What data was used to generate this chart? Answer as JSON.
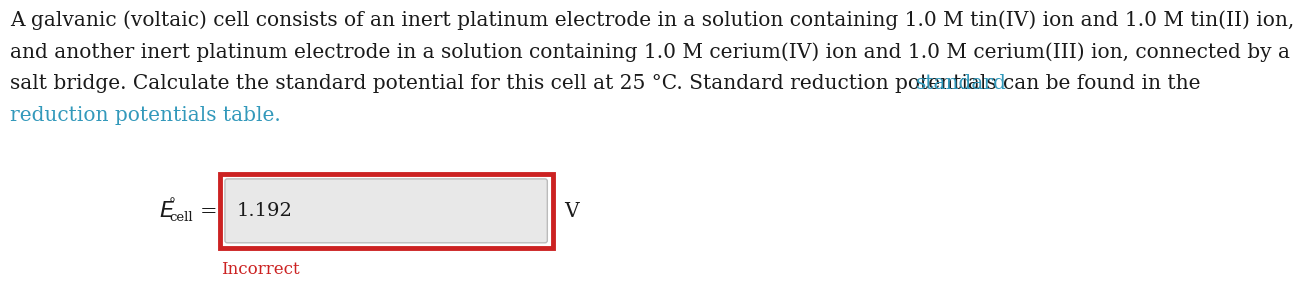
{
  "background_color": "#ffffff",
  "line1": "A galvanic (voltaic) cell consists of an inert platinum electrode in a solution containing 1.0 M tin(IV) ion and 1.0 M tin(II) ion,",
  "line2": "and another inert platinum electrode in a solution containing 1.0 M cerium(IV) ion and 1.0 M cerium(III) ion, connected by a",
  "line3_normal": "salt bridge. Calculate the standard potential for this cell at 25 °C. Standard reduction potentials can be found in the ",
  "line3_link": "standard",
  "line4_link": "reduction potentials table.",
  "text_color": "#1a1a1a",
  "link_color": "#3399bb",
  "answer_value": "1.192",
  "answer_label": "V",
  "incorrect_text": "Incorrect",
  "incorrect_color": "#cc2222",
  "outer_box_color": "#cc2222",
  "inner_box_fill": "#e8e8e8",
  "inner_box_edge": "#bbbbbb",
  "font_size_para": 14.5,
  "font_size_answer": 14.0,
  "font_size_label": 14.5,
  "font_size_ecell": 15.0,
  "font_size_incorrect": 12.0
}
